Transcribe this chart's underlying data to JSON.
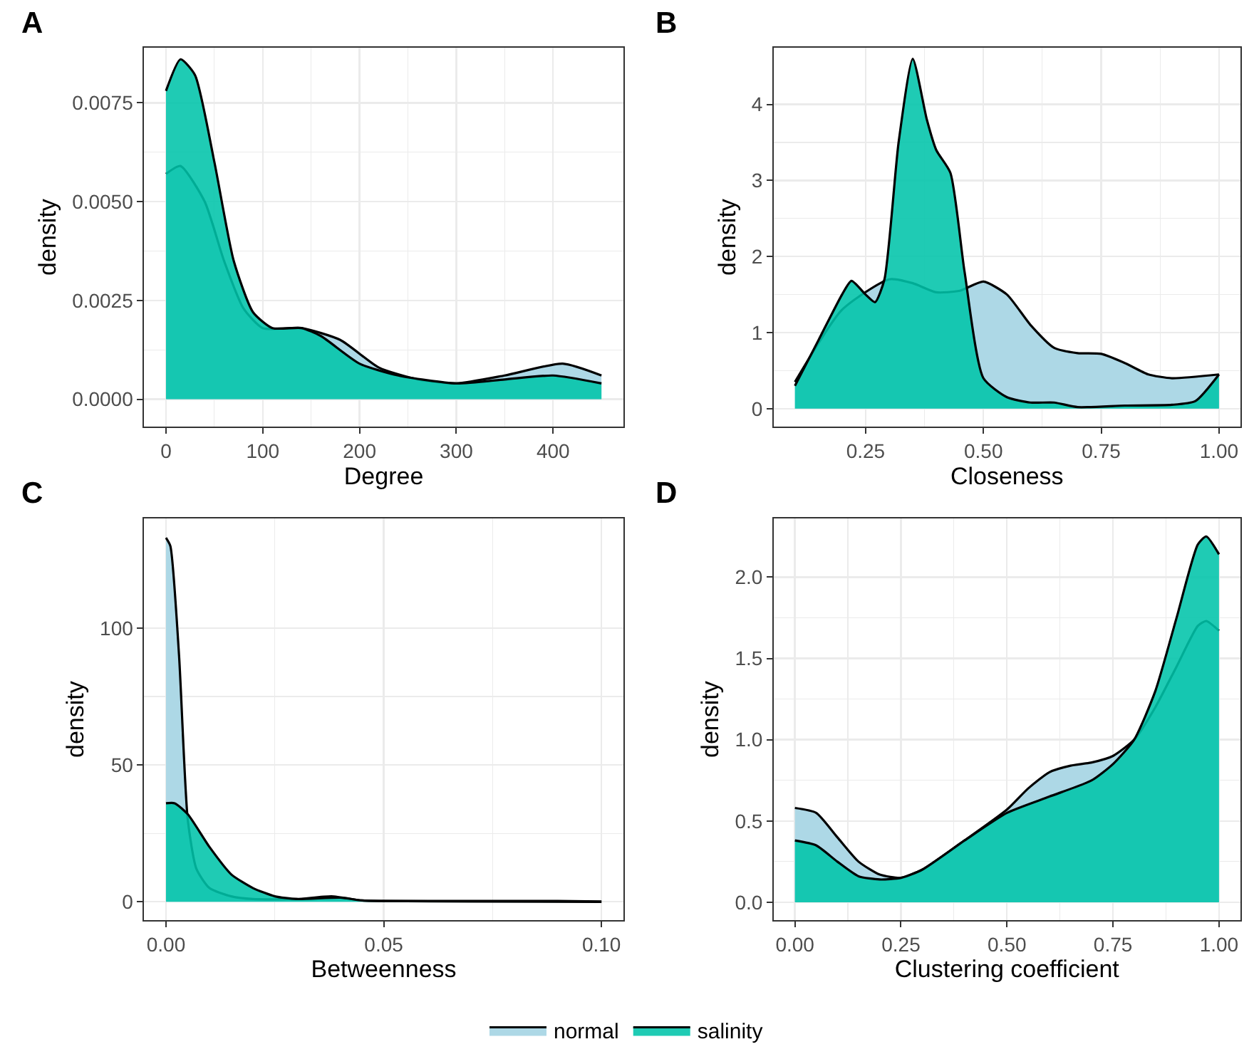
{
  "chart_data": [
    {
      "type": "area",
      "title": "A",
      "xlabel": "Degree",
      "ylabel": "density",
      "xlim": [
        -22.5,
        472.5
      ],
      "xticks": [
        0,
        100,
        200,
        300,
        400
      ],
      "ylim": [
        -0.0007,
        0.0089
      ],
      "yticks": [
        {
          "value": 0,
          "label": "0.0000"
        },
        {
          "value": 0.0025,
          "label": "0.0025"
        },
        {
          "value": 0.005,
          "label": "0.0050"
        },
        {
          "value": 0.0075,
          "label": "0.0075"
        }
      ],
      "grid": true,
      "legend": "bottom",
      "series": [
        {
          "name": "normal",
          "color": "#add8e6",
          "x": [
            0,
            15,
            40,
            60,
            80,
            100,
            140,
            180,
            220,
            260,
            300,
            350,
            410,
            450
          ],
          "values": [
            0.0057,
            0.0059,
            0.005,
            0.0035,
            0.0023,
            0.0018,
            0.0018,
            0.0015,
            0.0008,
            0.0005,
            0.0004,
            0.0006,
            0.0009,
            0.0006
          ]
        },
        {
          "name": "salinity",
          "color": "#00c4aa",
          "x": [
            0,
            15,
            30,
            50,
            70,
            90,
            110,
            140,
            160,
            200,
            240,
            300,
            350,
            400,
            450
          ],
          "values": [
            0.0078,
            0.0086,
            0.0082,
            0.006,
            0.0035,
            0.0022,
            0.0018,
            0.0018,
            0.0016,
            0.0009,
            0.0006,
            0.0004,
            0.0005,
            0.0006,
            0.0004
          ]
        }
      ]
    },
    {
      "type": "area",
      "title": "B",
      "xlabel": "Closeness",
      "ylabel": "density",
      "xlim": [
        0.055,
        1.045
      ],
      "xticks": [
        {
          "value": 0.25,
          "label": "0.25"
        },
        {
          "value": 0.5,
          "label": "0.50"
        },
        {
          "value": 0.75,
          "label": "0.75"
        },
        {
          "value": 1,
          "label": "1.00"
        }
      ],
      "ylim": [
        -0.24,
        4.75
      ],
      "yticks": [
        0,
        1,
        2,
        3,
        4
      ],
      "grid": true,
      "series": [
        {
          "color": "#add8e6",
          "x": [
            0.1,
            0.2,
            0.3,
            0.35,
            0.4,
            0.45,
            0.5,
            0.55,
            0.6,
            0.65,
            0.7,
            0.75,
            0.8,
            0.85,
            0.9,
            1.0
          ],
          "values": [
            0.35,
            1.3,
            1.7,
            1.65,
            1.53,
            1.55,
            1.67,
            1.5,
            1.1,
            0.8,
            0.73,
            0.72,
            0.6,
            0.45,
            0.4,
            0.45
          ]
        },
        {
          "color": "#00c4aa",
          "x": [
            0.1,
            0.15,
            0.2,
            0.22,
            0.25,
            0.27,
            0.29,
            0.32,
            0.35,
            0.38,
            0.4,
            0.43,
            0.46,
            0.5,
            0.55,
            0.6,
            0.65,
            0.7,
            0.8,
            0.9,
            0.95,
            1.0
          ],
          "values": [
            0.3,
            0.9,
            1.5,
            1.68,
            1.5,
            1.4,
            1.7,
            3.5,
            4.6,
            3.8,
            3.4,
            3.1,
            1.8,
            0.4,
            0.15,
            0.08,
            0.08,
            0.02,
            0.04,
            0.05,
            0.1,
            0.45
          ]
        }
      ]
    },
    {
      "type": "area",
      "title": "C",
      "xlabel": "Betweenness",
      "ylabel": "density",
      "xlim": [
        -0.005,
        0.105
      ],
      "xticks": [
        {
          "value": 0,
          "label": "0.00"
        },
        {
          "value": 0.05,
          "label": "0.05"
        },
        {
          "value": 0.1,
          "label": "0.10"
        }
      ],
      "ylim": [
        -6.7,
        140
      ],
      "yticks": [
        0,
        50,
        100
      ],
      "grid": true,
      "series": [
        {
          "color": "#add8e6",
          "x": [
            0,
            0.001,
            0.003,
            0.005,
            0.007,
            0.01,
            0.015,
            0.02,
            0.03,
            0.038,
            0.045,
            0.05,
            0.07,
            0.1
          ],
          "values": [
            133,
            130,
            90,
            30,
            12,
            5,
            2,
            1,
            1,
            2,
            0.5,
            0.3,
            0.1,
            0
          ]
        },
        {
          "color": "#00c4aa",
          "x": [
            0,
            0.002,
            0.005,
            0.01,
            0.015,
            0.02,
            0.025,
            0.03,
            0.04,
            0.045,
            0.05,
            0.06,
            0.09,
            0.1
          ],
          "values": [
            36,
            36,
            32,
            20,
            10,
            5,
            2,
            1,
            1.5,
            0.5,
            0.3,
            0.3,
            0.3,
            0.1
          ]
        }
      ]
    },
    {
      "type": "area",
      "title": "D",
      "xlabel": "Clustering coefficient",
      "ylabel": "density",
      "xlim": [
        -0.05,
        1.05
      ],
      "xticks": [
        {
          "value": 0,
          "label": "0.00"
        },
        {
          "value": 0.25,
          "label": "0.25"
        },
        {
          "value": 0.5,
          "label": "0.50"
        },
        {
          "value": 0.75,
          "label": "0.75"
        },
        {
          "value": 1,
          "label": "1.00"
        }
      ],
      "ylim": [
        -0.11,
        2.36
      ],
      "yticks": [
        {
          "value": 0,
          "label": "0.0"
        },
        {
          "value": 0.5,
          "label": "0.5"
        },
        {
          "value": 1,
          "label": "1.0"
        },
        {
          "value": 1.5,
          "label": "1.5"
        },
        {
          "value": 2,
          "label": "2.0"
        }
      ],
      "grid": true,
      "series": [
        {
          "color": "#add8e6",
          "x": [
            0,
            0.05,
            0.1,
            0.15,
            0.2,
            0.25,
            0.3,
            0.4,
            0.5,
            0.55,
            0.6,
            0.65,
            0.7,
            0.75,
            0.8,
            0.85,
            0.9,
            0.95,
            0.97,
            1.0
          ],
          "values": [
            0.58,
            0.55,
            0.4,
            0.25,
            0.17,
            0.15,
            0.2,
            0.38,
            0.57,
            0.7,
            0.8,
            0.84,
            0.86,
            0.9,
            1.0,
            1.2,
            1.45,
            1.7,
            1.73,
            1.67
          ]
        },
        {
          "color": "#00c4aa",
          "x": [
            0,
            0.05,
            0.1,
            0.15,
            0.2,
            0.25,
            0.3,
            0.4,
            0.5,
            0.6,
            0.7,
            0.75,
            0.8,
            0.85,
            0.9,
            0.95,
            0.97,
            1.0
          ],
          "values": [
            0.38,
            0.35,
            0.25,
            0.16,
            0.14,
            0.15,
            0.2,
            0.38,
            0.55,
            0.65,
            0.75,
            0.85,
            1.0,
            1.3,
            1.75,
            2.2,
            2.25,
            2.14
          ]
        }
      ]
    }
  ]
}
